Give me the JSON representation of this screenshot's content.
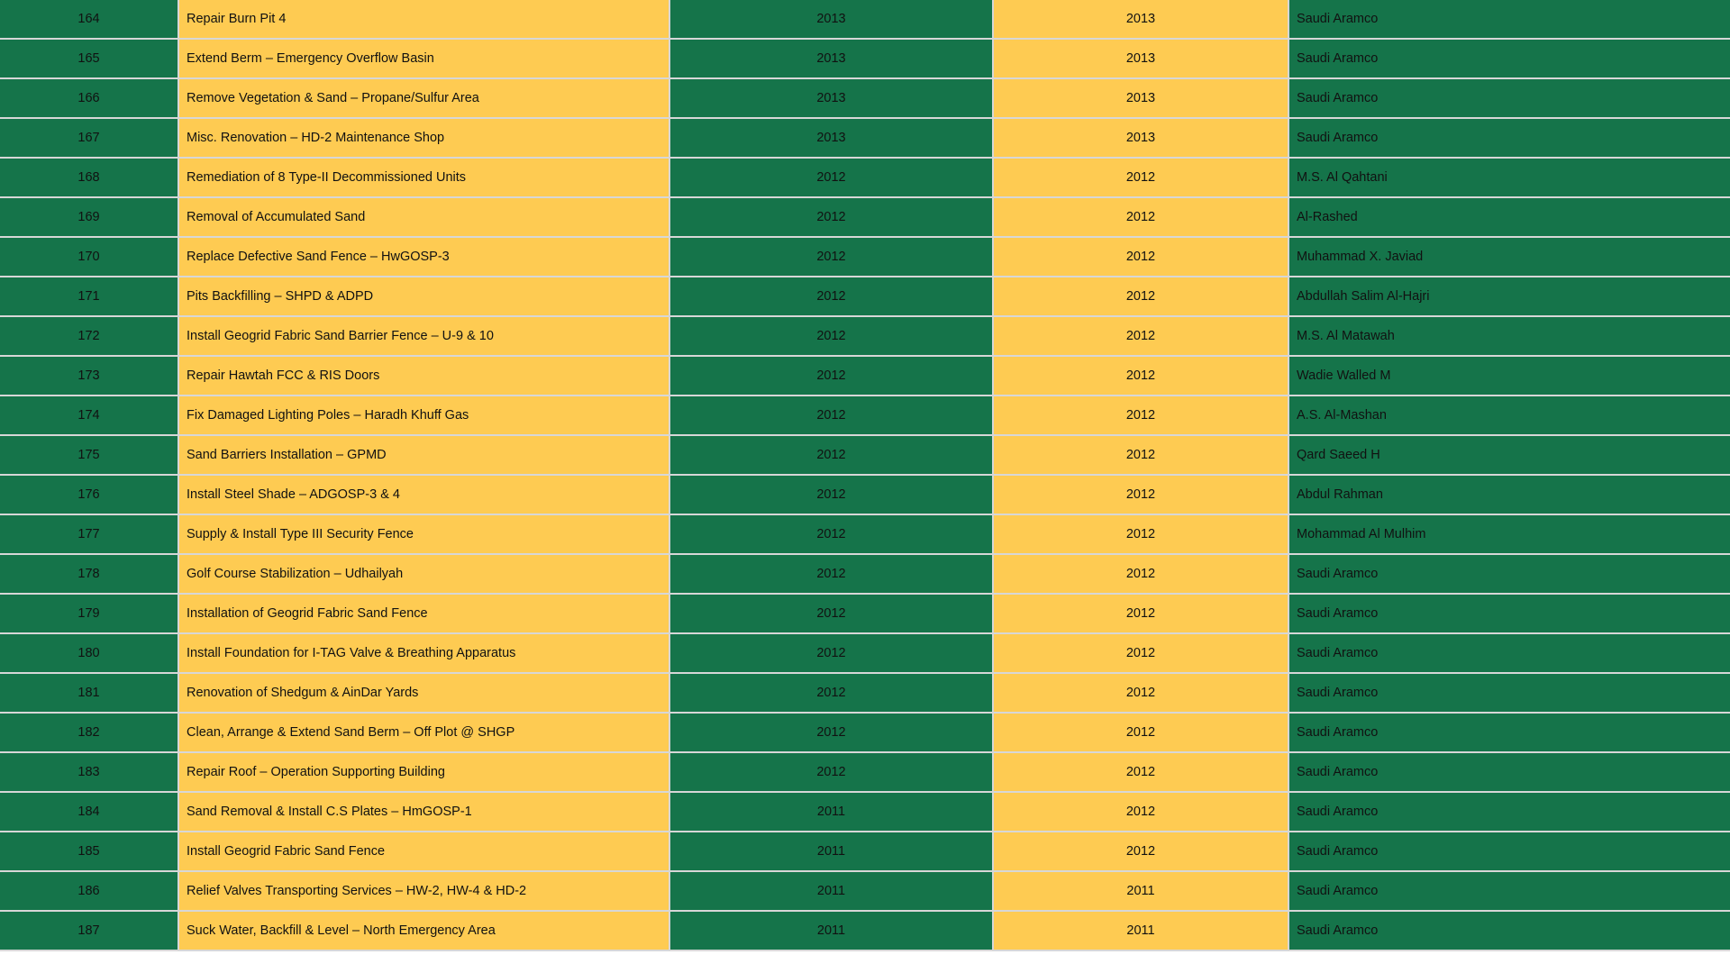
{
  "colors": {
    "green": "#15744a",
    "yellow": "#fecb52",
    "grid": "#d7d7d7"
  },
  "rows": [
    {
      "no": "164",
      "project": "Repair Burn Pit 4",
      "start": "2013",
      "end": "2013",
      "client": "Saudi Aramco"
    },
    {
      "no": "165",
      "project": "Extend Berm – Emergency Overflow Basin",
      "start": "2013",
      "end": "2013",
      "client": "Saudi Aramco"
    },
    {
      "no": "166",
      "project": "Remove Vegetation & Sand – Propane/Sulfur Area",
      "start": "2013",
      "end": "2013",
      "client": "Saudi Aramco"
    },
    {
      "no": "167",
      "project": "Misc. Renovation – HD-2 Maintenance Shop",
      "start": "2013",
      "end": "2013",
      "client": "Saudi Aramco"
    },
    {
      "no": "168",
      "project": "Remediation of 8 Type-II Decommissioned Units",
      "start": "2012",
      "end": "2012",
      "client": "M.S. Al Qahtani"
    },
    {
      "no": "169",
      "project": "Removal of Accumulated Sand",
      "start": "2012",
      "end": "2012",
      "client": "Al-Rashed"
    },
    {
      "no": "170",
      "project": "Replace Defective Sand Fence – HwGOSP-3",
      "start": "2012",
      "end": "2012",
      "client": "Muhammad X. Javiad"
    },
    {
      "no": "171",
      "project": "Pits Backfilling – SHPD & ADPD",
      "start": "2012",
      "end": "2012",
      "client": "Abdullah Salim Al-Hajri"
    },
    {
      "no": "172",
      "project": "Install Geogrid Fabric Sand Barrier Fence – U-9 & 10",
      "start": "2012",
      "end": "2012",
      "client": "M.S. Al Matawah"
    },
    {
      "no": "173",
      "project": "Repair Hawtah FCC & RIS Doors",
      "start": "2012",
      "end": "2012",
      "client": "Wadie Walled M"
    },
    {
      "no": "174",
      "project": "Fix Damaged Lighting Poles – Haradh Khuff Gas",
      "start": "2012",
      "end": "2012",
      "client": "A.S. Al-Mashan"
    },
    {
      "no": "175",
      "project": "Sand Barriers Installation – GPMD",
      "start": "2012",
      "end": "2012",
      "client": "Qard Saeed H"
    },
    {
      "no": "176",
      "project": "Install Steel Shade – ADGOSP-3 & 4",
      "start": "2012",
      "end": "2012",
      "client": "Abdul Rahman"
    },
    {
      "no": "177",
      "project": "Supply & Install Type III Security Fence",
      "start": "2012",
      "end": "2012",
      "client": "Mohammad Al Mulhim"
    },
    {
      "no": "178",
      "project": "Golf Course Stabilization – Udhailyah",
      "start": "2012",
      "end": "2012",
      "client": "Saudi Aramco"
    },
    {
      "no": "179",
      "project": "Installation of Geogrid Fabric Sand Fence",
      "start": "2012",
      "end": "2012",
      "client": "Saudi Aramco"
    },
    {
      "no": "180",
      "project": "Install Foundation for I-TAG Valve & Breathing Apparatus",
      "start": "2012",
      "end": "2012",
      "client": "Saudi Aramco"
    },
    {
      "no": "181",
      "project": "Renovation of Shedgum & AinDar Yards",
      "start": "2012",
      "end": "2012",
      "client": "Saudi Aramco"
    },
    {
      "no": "182",
      "project": "Clean, Arrange & Extend Sand Berm – Off Plot @ SHGP",
      "start": "2012",
      "end": "2012",
      "client": "Saudi Aramco"
    },
    {
      "no": "183",
      "project": "Repair Roof – Operation Supporting Building",
      "start": "2012",
      "end": "2012",
      "client": "Saudi Aramco"
    },
    {
      "no": "184",
      "project": "Sand Removal & Install C.S Plates – HmGOSP-1",
      "start": "2011",
      "end": "2012",
      "client": "Saudi Aramco"
    },
    {
      "no": "185",
      "project": "Install Geogrid Fabric Sand Fence",
      "start": "2011",
      "end": "2012",
      "client": "Saudi Aramco"
    },
    {
      "no": "186",
      "project": "Relief Valves Transporting Services – HW-2, HW-4 & HD-2",
      "start": "2011",
      "end": "2011",
      "client": "Saudi Aramco"
    },
    {
      "no": "187",
      "project": "Suck Water, Backfill & Level – North Emergency Area",
      "start": "2011",
      "end": "2011",
      "client": "Saudi Aramco"
    }
  ]
}
